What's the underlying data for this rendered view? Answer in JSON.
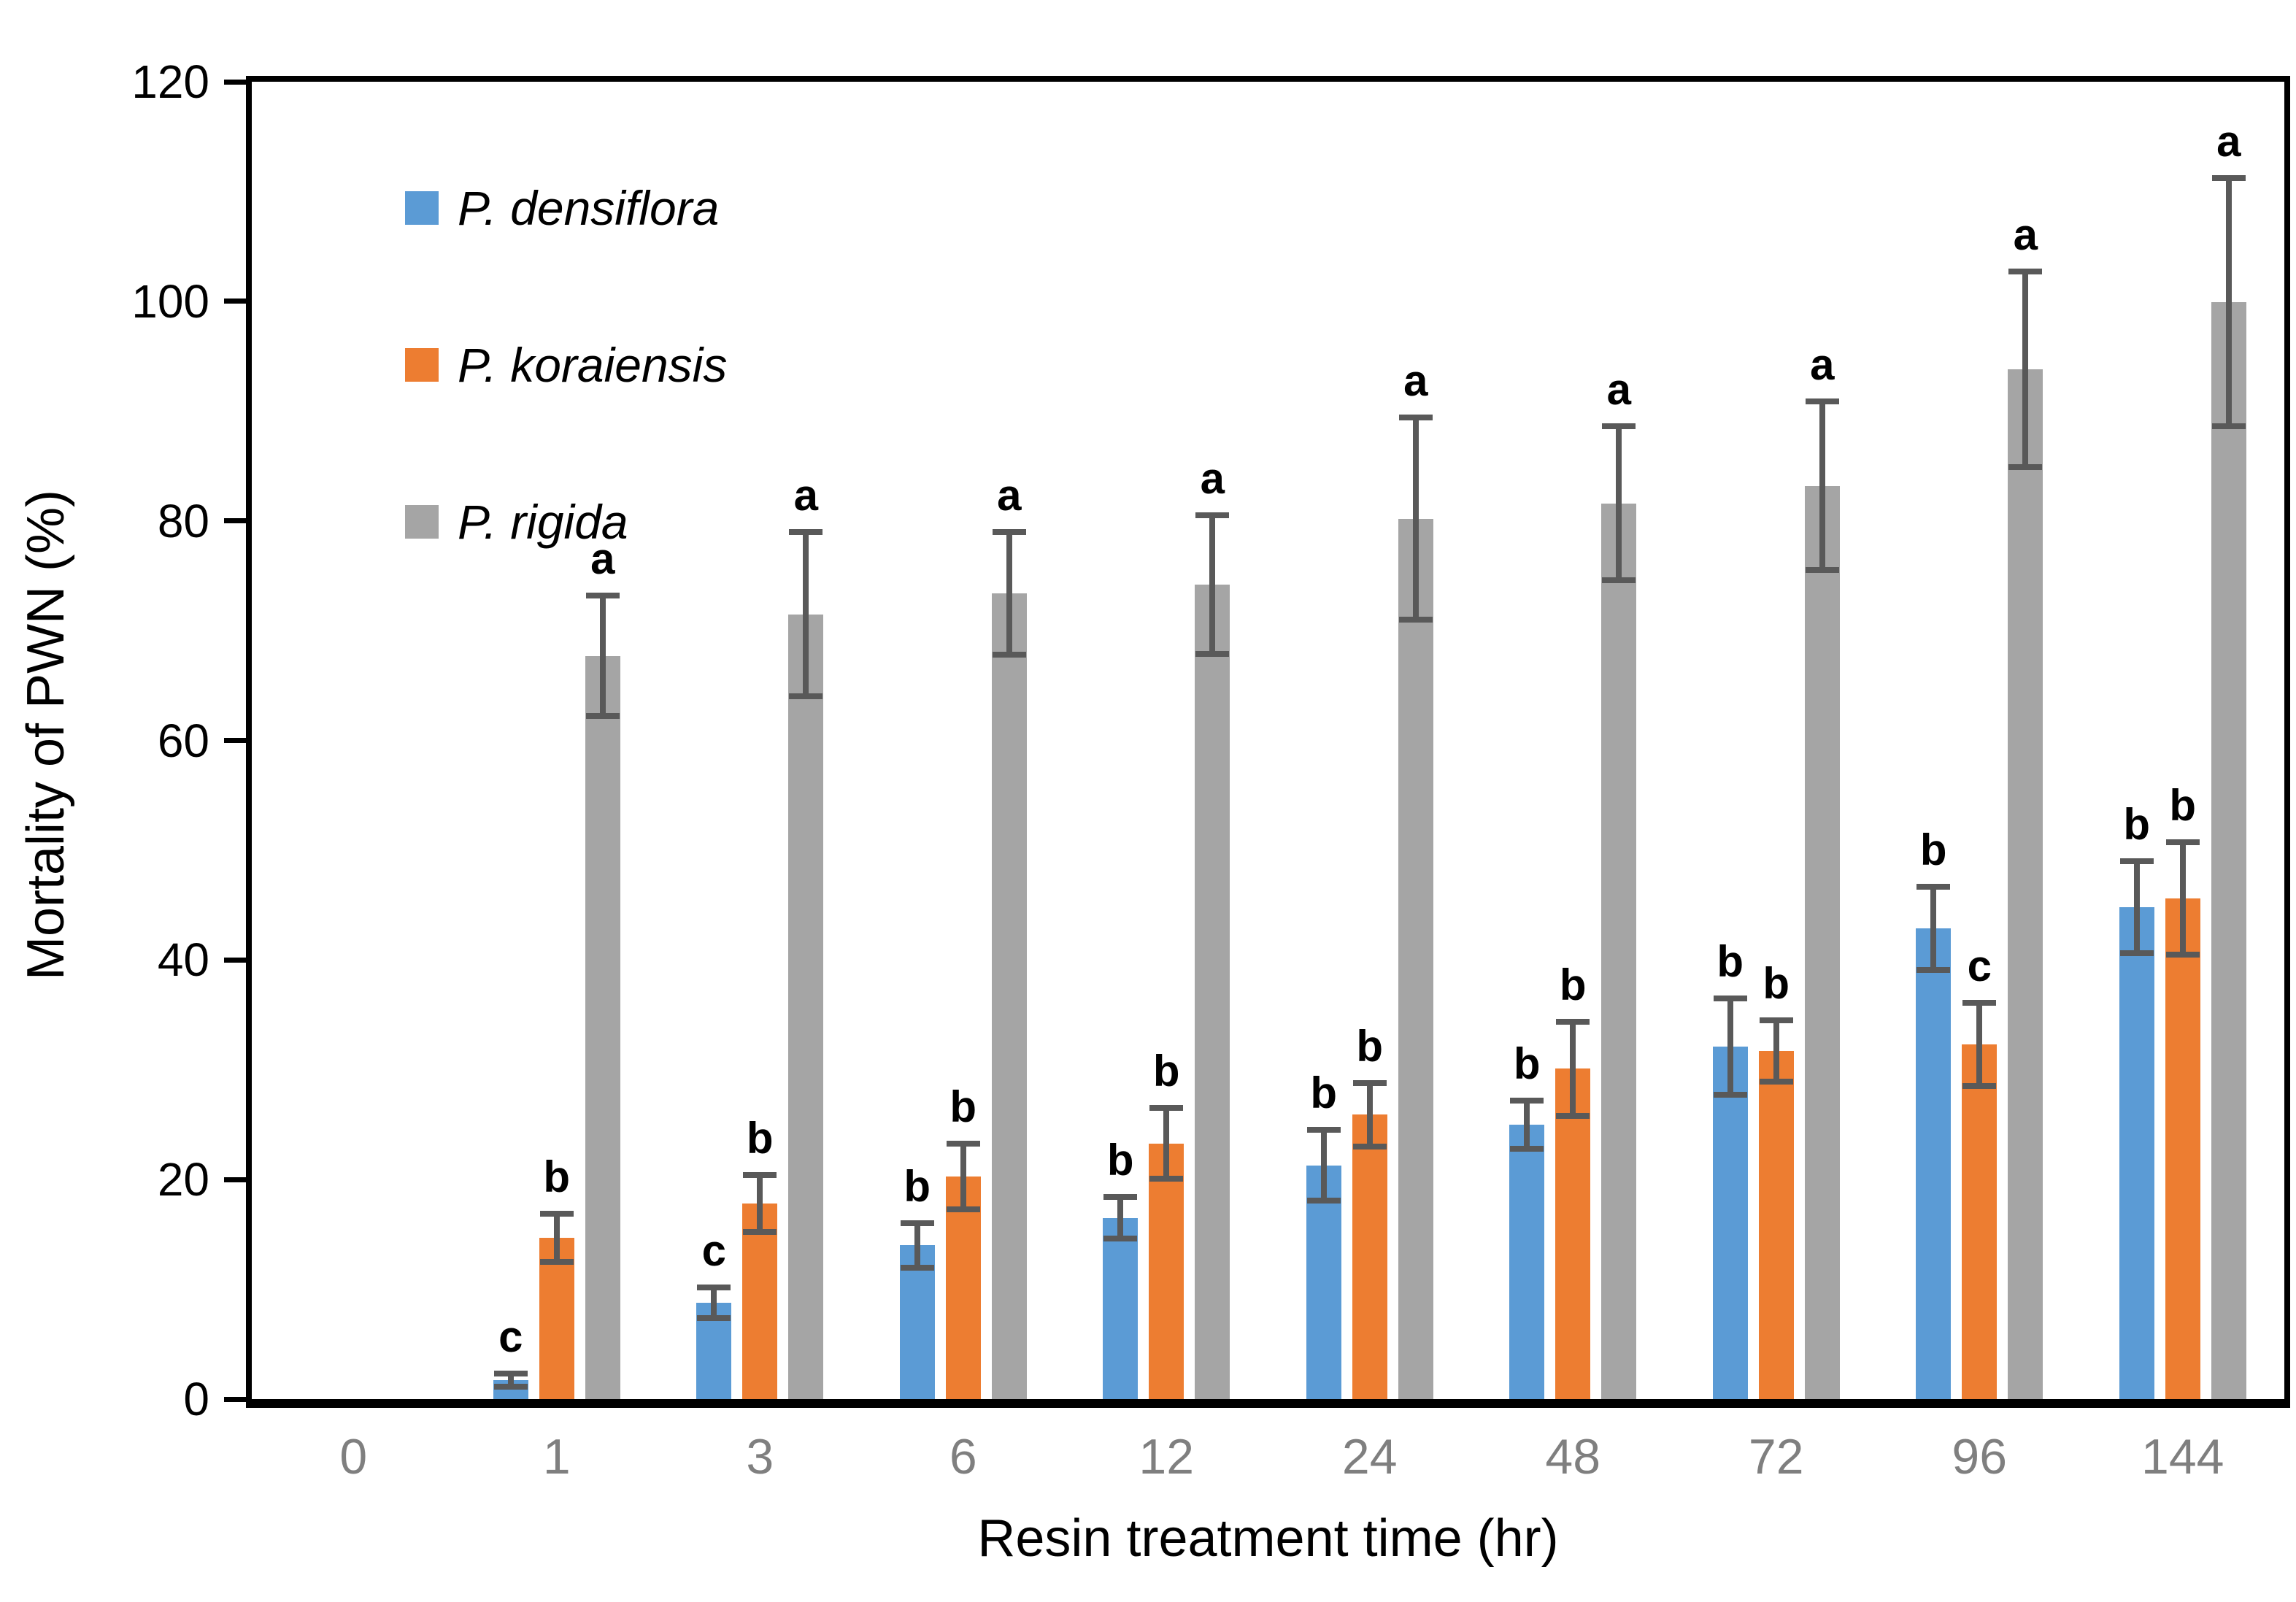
{
  "figure": {
    "background": "#ffffff",
    "frame_color": "#000000",
    "x_tick_label_color": "#7F7F7F",
    "error_bar_color": "#595959"
  },
  "chart_data": {
    "type": "bar",
    "title": "",
    "xlabel": "Resin treatment time (hr)",
    "ylabel": "Mortality of PWN (%)",
    "ylim": [
      0,
      120
    ],
    "yticks": [
      0,
      20,
      40,
      60,
      80,
      100,
      120
    ],
    "grid": false,
    "legend_position": "top-left-inside",
    "categories": [
      "0",
      "1",
      "3",
      "6",
      "12",
      "24",
      "48",
      "72",
      "96",
      "144"
    ],
    "series": [
      {
        "name": "P. densiflora",
        "color": "#5B9BD5",
        "values": [
          0,
          1.7,
          8.8,
          14.0,
          16.5,
          21.3,
          25.0,
          32.1,
          42.9,
          44.8
        ],
        "errors": [
          0,
          0.6,
          1.4,
          2.0,
          1.9,
          3.2,
          2.2,
          4.4,
          3.8,
          4.2
        ],
        "letters": [
          "",
          "c",
          "c",
          "b",
          "b",
          "b",
          "b",
          "b",
          "b",
          "b"
        ]
      },
      {
        "name": "P. koraiensis",
        "color": "#ED7D31",
        "values": [
          0,
          14.7,
          17.8,
          20.3,
          23.3,
          25.9,
          30.1,
          31.7,
          32.3,
          45.6
        ],
        "errors": [
          0,
          2.2,
          2.6,
          3.0,
          3.2,
          2.9,
          4.3,
          2.8,
          3.8,
          5.1
        ],
        "letters": [
          "",
          "b",
          "b",
          "b",
          "b",
          "b",
          "b",
          "b",
          "c",
          "b"
        ]
      },
      {
        "name": "P. rigida",
        "color": "#A5A5A5",
        "values": [
          0,
          67.7,
          71.5,
          73.4,
          74.2,
          80.2,
          81.6,
          83.2,
          93.8,
          99.9
        ],
        "errors": [
          0,
          5.5,
          7.5,
          5.6,
          6.3,
          9.2,
          7.0,
          7.7,
          8.9,
          11.3
        ],
        "letters": [
          "",
          "a",
          "a",
          "a",
          "a",
          "a",
          "a",
          "a",
          "a",
          "a"
        ]
      }
    ],
    "error_bar_color": "#595959"
  }
}
